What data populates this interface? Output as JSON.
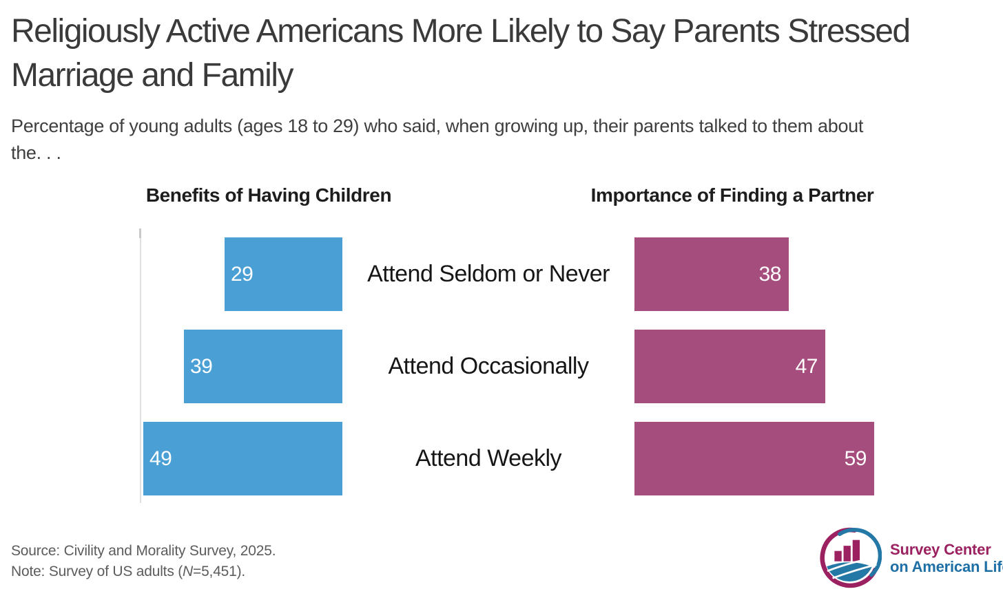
{
  "title": {
    "line1": "Religiously Active Americans More Likely to Say Parents Stressed",
    "line2": "Marriage and Family"
  },
  "subtitle": {
    "line1": "Percentage of young adults (ages 18 to 29) who said, when growing up, their parents talked to them about",
    "line2": "the. . ."
  },
  "chart_data": {
    "type": "bar",
    "orientation": "horizontal",
    "layout": "diverging-two-panel",
    "categories": [
      "Attend Seldom or Never",
      "Attend Occasionally",
      "Attend Weekly"
    ],
    "series": [
      {
        "name": "Benefits of Having Children",
        "side": "left",
        "color": "#4A9FD5",
        "values": [
          29,
          39,
          49
        ]
      },
      {
        "name": "Importance of Finding a Partner",
        "side": "right",
        "color": "#A54E7E",
        "values": [
          38,
          47,
          59
        ]
      }
    ],
    "value_labels": "inside bar ends, white",
    "xlim": [
      0,
      60
    ],
    "grid": false,
    "legend": "none"
  },
  "footer": {
    "source": "Source: Civility and Morality Survey, 2025.",
    "note_prefix": "Note: Survey of US adults (",
    "note_n": "N",
    "note_suffix": "=5,451)."
  },
  "logo": {
    "line1": "Survey Center",
    "line2": "on American Life",
    "magenta": "#9b2160",
    "blue": "#1e6fa5"
  },
  "colors": {
    "left_bar": "#4A9FD5",
    "right_bar": "#A54E7E",
    "title_text": "#3a3a3a",
    "value_text": "#ffffff"
  }
}
